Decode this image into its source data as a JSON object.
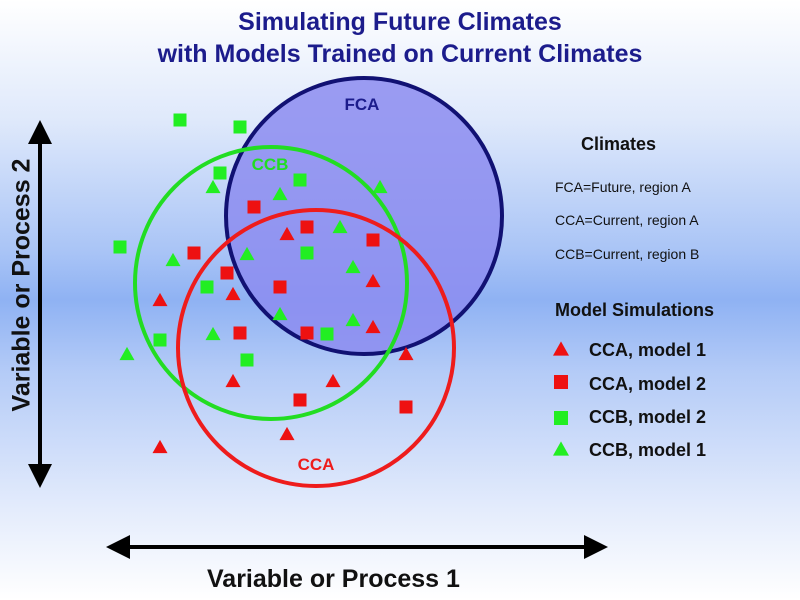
{
  "title": {
    "line1": "Simulating Future Climates",
    "line2": "with Models Trained on Current Climates"
  },
  "axes": {
    "x_label": "Variable or Process 1",
    "y_label": "Variable or Process 2"
  },
  "circles": {
    "fca": {
      "label": "FCA",
      "stroke": "#111173",
      "fill": "#8c8cf0"
    },
    "ccb": {
      "label": "CCB",
      "stroke": "#22dd22"
    },
    "cca": {
      "label": "CCA",
      "stroke": "#ee1c1c"
    }
  },
  "legend": {
    "climates_title": "Climates",
    "climates": [
      "FCA=Future, region A",
      "CCA=Current, region A",
      "CCB=Current, region B"
    ],
    "models_title": "Model Simulations",
    "models": [
      {
        "label": "CCA, model 1",
        "shape": "triangle",
        "color": "#ee1111"
      },
      {
        "label": "CCA, model 2",
        "shape": "square",
        "color": "#ee1111"
      },
      {
        "label": "CCB, model 2",
        "shape": "square",
        "color": "#22ee22"
      },
      {
        "label": "CCB, model 1",
        "shape": "triangle",
        "color": "#22ee22"
      }
    ]
  }
}
